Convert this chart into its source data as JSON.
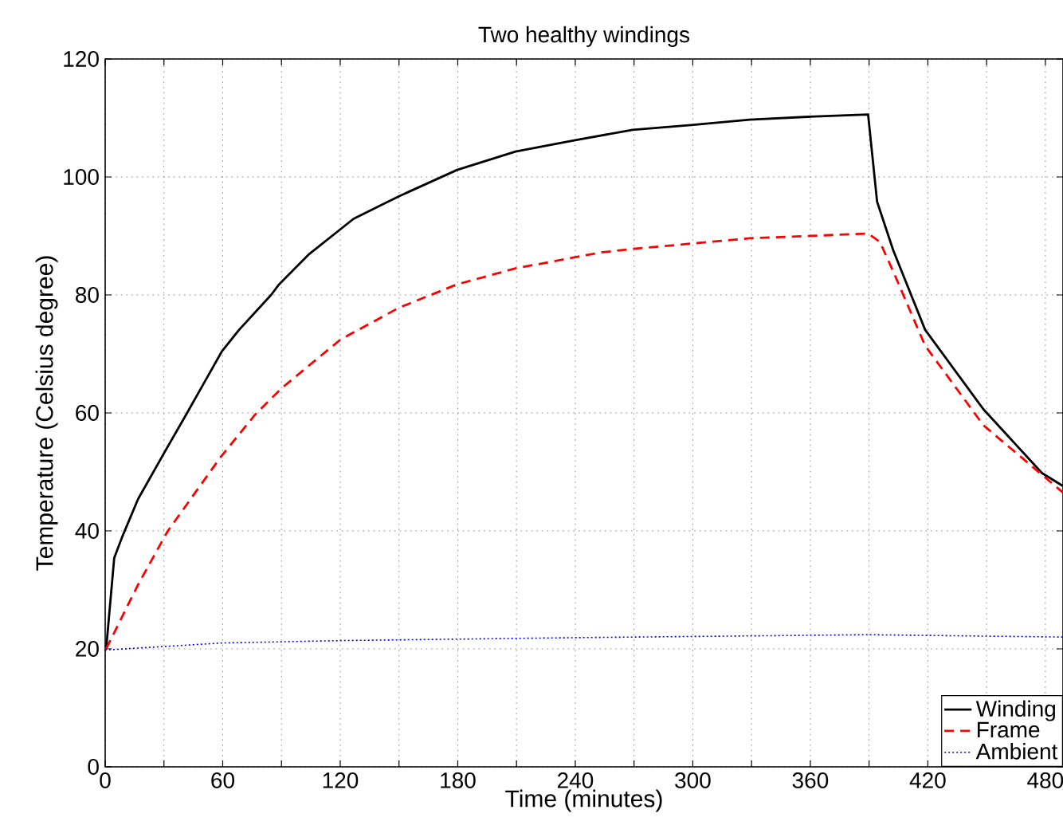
{
  "chart_data": {
    "type": "line",
    "title": "Two healthy windings",
    "xlabel": "Time (minutes)",
    "ylabel": "Temperature (Celsius degree)",
    "xlim": [
      0,
      489
    ],
    "ylim": [
      0,
      120
    ],
    "xticks": [
      0,
      {
        "value": 30,
        "label": null
      },
      60,
      {
        "value": 90,
        "label": null
      },
      120,
      {
        "value": 150,
        "label": null
      },
      180,
      {
        "value": 210,
        "label": null
      },
      240,
      {
        "value": 270,
        "label": null
      },
      300,
      {
        "value": 330,
        "label": null
      },
      360,
      {
        "value": 390,
        "label": null
      },
      420,
      {
        "value": 450,
        "label": null
      },
      480
    ],
    "yticks": [
      0,
      20,
      40,
      60,
      80,
      100,
      120
    ],
    "grid": true,
    "legend": "bottom right",
    "marker": "none",
    "series": [
      {
        "name": "Winding",
        "color": "#000000",
        "line_style": "solid",
        "x": [
          0.5,
          4.6,
          8.7,
          16.8,
          30.4,
          41.3,
          59.7,
          68.4,
          84.7,
          88.8,
          103.7,
          126.8,
          149.8,
          179.7,
          209.5,
          239.4,
          269.3,
          299.1,
          329,
          358.9,
          389.5,
          394.1,
          402.3,
          418.6,
          448.4,
          478.3,
          489
        ],
        "values": [
          20,
          35.4,
          39,
          45.4,
          53.4,
          59.7,
          70.5,
          74.1,
          80,
          81.8,
          86.8,
          92.9,
          96.7,
          101.2,
          104.3,
          106.2,
          108,
          108.8,
          109.7,
          110.2,
          110.6,
          95.8,
          87.6,
          74.1,
          60.6,
          49.8,
          47.6
        ]
      },
      {
        "name": "Frame",
        "color": "#ff0000",
        "line_style": "dashed",
        "x": [
          0.5,
          16.8,
          31.8,
          58.9,
          76.5,
          90.1,
          120,
          149.8,
          179.7,
          209.5,
          253,
          269.3,
          329,
          389.5,
          395.5,
          402.3,
          418.6,
          448.4,
          489
        ],
        "values": [
          20,
          30.9,
          39.9,
          52.5,
          59.7,
          64.2,
          72.4,
          77.8,
          81.8,
          84.5,
          87.2,
          87.8,
          89.6,
          90.4,
          89,
          84,
          71.4,
          57.9,
          46.5
        ]
      },
      {
        "name": "Ambient",
        "color": "#0000ff",
        "line_style": "dotted",
        "x": [
          0,
          60,
          120,
          240,
          390,
          489
        ],
        "values": [
          19.8,
          21,
          21.4,
          21.9,
          22.4,
          22
        ]
      }
    ]
  }
}
